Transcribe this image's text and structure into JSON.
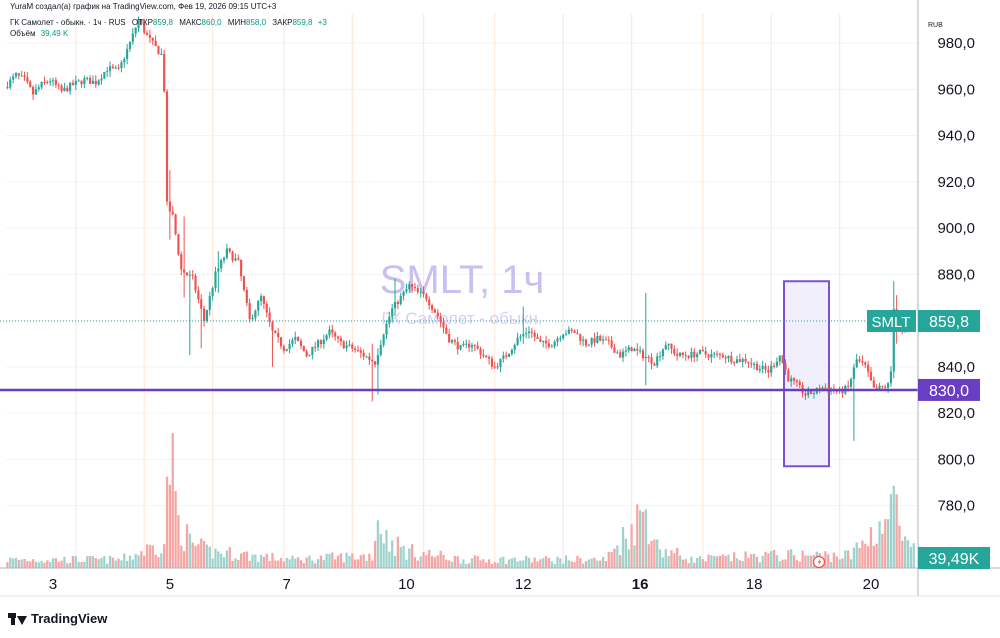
{
  "header": {
    "attribution": "YuraM создал(а) график на TradingView.com, Фев 19, 2026 09:15 UTC+3",
    "symbol_line": "ГК Самолет - обыкн. · 1ч · RUS",
    "open_label": "ОТКР",
    "open_value": "859,8",
    "high_label": "МАКС",
    "high_value": "860,0",
    "low_label": "МИН",
    "low_value": "858,0",
    "close_label": "ЗАКР",
    "close_value": "859,8",
    "change": "+3",
    "volume_label": "Объём",
    "volume_value": "39,49 K"
  },
  "watermark": {
    "symbol": "SMLT, 1ч",
    "name": "ГК Самолет - обыкн."
  },
  "currency": "RUB",
  "brand": "TradingView",
  "colors": {
    "up": "#26a69a",
    "down": "#ef5350",
    "level_line": "#6a3ec2",
    "box_fill": "#ede8fb",
    "box_stroke": "#7b52d3",
    "price_tag": "#26a69a",
    "watermark": "#c9bff0"
  },
  "chart_data": {
    "type": "candlestick",
    "interval": "1h",
    "y_axis": {
      "min": 770,
      "max": 1000,
      "ticks": [
        "780,0",
        "800,0",
        "820,0",
        "840,0",
        "860,0",
        "880,0",
        "900,0",
        "920,0",
        "940,0",
        "960,0",
        "980,0"
      ]
    },
    "x_axis": {
      "labels": [
        "3",
        "5",
        "7",
        "10",
        "12",
        "16",
        "18",
        "20"
      ],
      "bold_label": "16"
    },
    "last_price": {
      "symbol": "SMLT",
      "value": 859.8,
      "label": "859,8"
    },
    "horizontal_level": {
      "value": 830,
      "label": "830,0"
    },
    "highlight_box": {
      "price_top": 877,
      "price_bottom": 797
    },
    "volume_last": "39,49 K",
    "anchors": [
      [
        0,
        961
      ],
      [
        4,
        966
      ],
      [
        7,
        964
      ],
      [
        10,
        958
      ],
      [
        13,
        962
      ],
      [
        16,
        964
      ],
      [
        20,
        959
      ],
      [
        24,
        962
      ],
      [
        28,
        964
      ],
      [
        32,
        963
      ],
      [
        36,
        969
      ],
      [
        40,
        968
      ],
      [
        44,
        980
      ],
      [
        47,
        990
      ],
      [
        50,
        983
      ],
      [
        53,
        978
      ],
      [
        55,
        975
      ],
      [
        56,
        960
      ],
      [
        57,
        910
      ],
      [
        59,
        905
      ],
      [
        62,
        882
      ],
      [
        66,
        878
      ],
      [
        70,
        860
      ],
      [
        74,
        880
      ],
      [
        78,
        890
      ],
      [
        82,
        885
      ],
      [
        86,
        860
      ],
      [
        90,
        870
      ],
      [
        94,
        855
      ],
      [
        98,
        848
      ],
      [
        102,
        852
      ],
      [
        106,
        845
      ],
      [
        110,
        850
      ],
      [
        114,
        855
      ],
      [
        118,
        850
      ],
      [
        122,
        848
      ],
      [
        126,
        845
      ],
      [
        130,
        842
      ],
      [
        133,
        855
      ],
      [
        136,
        865
      ],
      [
        139,
        870
      ],
      [
        142,
        875
      ],
      [
        145,
        872
      ],
      [
        148,
        870
      ],
      [
        152,
        862
      ],
      [
        156,
        852
      ],
      [
        160,
        848
      ],
      [
        164,
        850
      ],
      [
        168,
        845
      ],
      [
        172,
        840
      ],
      [
        176,
        845
      ],
      [
        180,
        852
      ],
      [
        184,
        856
      ],
      [
        188,
        850
      ],
      [
        192,
        850
      ],
      [
        196,
        855
      ],
      [
        200,
        855
      ],
      [
        204,
        850
      ],
      [
        208,
        852
      ],
      [
        212,
        850
      ],
      [
        216,
        845
      ],
      [
        220,
        848
      ],
      [
        224,
        845
      ],
      [
        228,
        842
      ],
      [
        232,
        850
      ],
      [
        236,
        845
      ],
      [
        240,
        845
      ],
      [
        244,
        846
      ],
      [
        248,
        845
      ],
      [
        252,
        845
      ],
      [
        256,
        843
      ],
      [
        260,
        843
      ],
      [
        264,
        840
      ],
      [
        268,
        838
      ],
      [
        272,
        845
      ],
      [
        275,
        835
      ],
      [
        278,
        832
      ],
      [
        281,
        828
      ],
      [
        284,
        829
      ],
      [
        287,
        831
      ],
      [
        290,
        830
      ],
      [
        293,
        829
      ],
      [
        296,
        831
      ],
      [
        299,
        843
      ],
      [
        302,
        840
      ],
      [
        305,
        830
      ],
      [
        308,
        831
      ],
      [
        310,
        832
      ],
      [
        311,
        838
      ],
      [
        312,
        866
      ],
      [
        315,
        855
      ],
      [
        318,
        859.8
      ]
    ],
    "volume_anchors": [
      [
        0,
        2
      ],
      [
        40,
        2
      ],
      [
        55,
        6
      ],
      [
        57,
        28
      ],
      [
        60,
        11
      ],
      [
        64,
        6
      ],
      [
        70,
        4
      ],
      [
        85,
        3
      ],
      [
        100,
        2
      ],
      [
        128,
        3
      ],
      [
        130,
        12
      ],
      [
        133,
        7
      ],
      [
        140,
        4
      ],
      [
        160,
        2
      ],
      [
        210,
        2
      ],
      [
        224,
        14
      ],
      [
        228,
        5
      ],
      [
        240,
        2
      ],
      [
        270,
        3
      ],
      [
        296,
        3
      ],
      [
        300,
        6
      ],
      [
        310,
        13
      ],
      [
        312,
        17
      ],
      [
        314,
        6
      ],
      [
        318,
        4
      ]
    ]
  }
}
